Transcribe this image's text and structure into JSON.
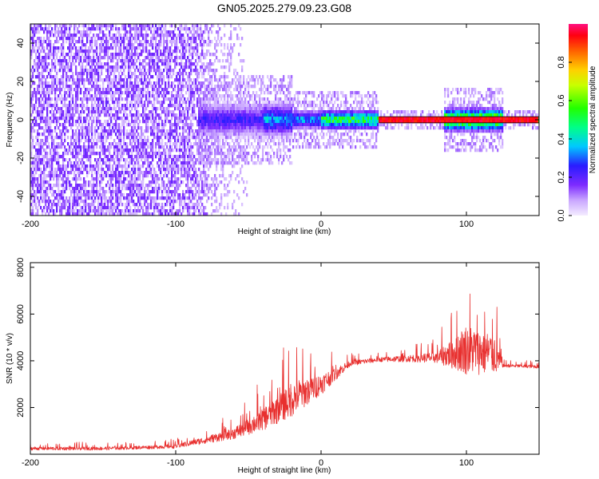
{
  "colors": {
    "background": "#ffffff",
    "signal": "#e8302f",
    "axis": "#000000",
    "noise": "#7a2cff"
  },
  "chart_data": [
    {
      "type": "heatmap",
      "title": "GN05.2025.279.09.23.G08",
      "xlabel": "Height of straight line (km)",
      "ylabel": "Frequency (Hz)",
      "xlim": [
        -200,
        150
      ],
      "ylim": [
        -50,
        50
      ],
      "x_ticks": [
        -200,
        -100,
        0,
        100
      ],
      "x_tick_labels": [
        "-200",
        "-100",
        "0",
        "100"
      ],
      "y_ticks": [
        -40,
        -20,
        0,
        20,
        40
      ],
      "y_tick_labels": [
        "-40",
        "-20",
        "0",
        "20",
        "40"
      ],
      "colorbar": {
        "label": "Normalized spectral amplitude",
        "range": [
          0,
          1
        ],
        "ticks": [
          0.0,
          0.2,
          0.4,
          0.6,
          0.8
        ],
        "tick_labels": [
          "0.0",
          "0.2",
          "0.4",
          "0.6",
          "0.8"
        ]
      },
      "features": {
        "noise_region_x": [
          -200,
          -50
        ],
        "signal_onset_x": -85,
        "dominant_frequency_hz": 0,
        "peak_band_x": [
          0,
          150
        ]
      }
    },
    {
      "type": "line",
      "xlabel": "Height of straight line (km)",
      "ylabel": "SNR (10 * v/v)",
      "xlim": [
        -200,
        150
      ],
      "ylim": [
        0,
        8200
      ],
      "x_ticks": [
        -200,
        -100,
        0,
        100
      ],
      "x_tick_labels": [
        "-200",
        "-100",
        "0",
        "100"
      ],
      "y_ticks": [
        2000,
        4000,
        6000,
        8000
      ],
      "y_tick_labels": [
        "2000",
        "4000",
        "6000",
        "8000"
      ],
      "series": [
        {
          "name": "SNR",
          "x": [
            -200,
            -150,
            -120,
            -100,
            -80,
            -60,
            -40,
            -20,
            0,
            20,
            40,
            60,
            80,
            100,
            120,
            125,
            150
          ],
          "values": [
            250,
            250,
            300,
            350,
            600,
            900,
            1500,
            2400,
            3000,
            3900,
            4050,
            4100,
            4150,
            4500,
            4300,
            3800,
            3750
          ],
          "spread": [
            150,
            150,
            150,
            200,
            300,
            500,
            1000,
            1600,
            900,
            250,
            200,
            300,
            500,
            2200,
            1800,
            150,
            150
          ]
        }
      ]
    }
  ]
}
